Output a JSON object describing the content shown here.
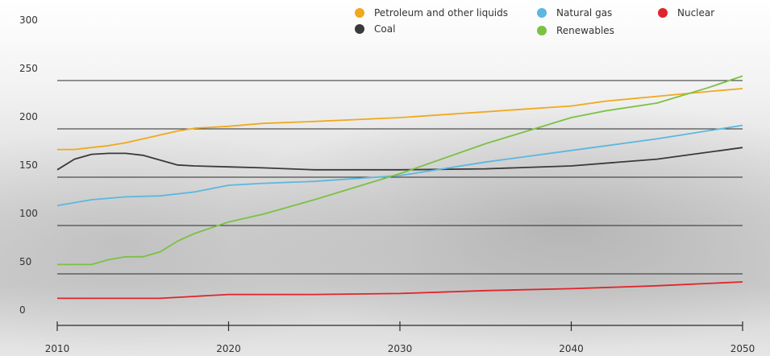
{
  "chart_data": {
    "type": "line",
    "title": "",
    "xlabel": "",
    "ylabel": "",
    "ylim": [
      0,
      300
    ],
    "xlim": [
      2010,
      2050
    ],
    "yticks": [
      0,
      50,
      100,
      150,
      200,
      250,
      300
    ],
    "xticks": [
      2010,
      2020,
      2030,
      2040,
      2050
    ],
    "legend_position": "top-right",
    "series": [
      {
        "name": "Petroleum and other liquids",
        "color": "#F0A91E",
        "x": [
          2010,
          2011,
          2012,
          2013,
          2014,
          2015,
          2016,
          2017,
          2018,
          2020,
          2022,
          2025,
          2030,
          2035,
          2040,
          2042,
          2045,
          2048,
          2050
        ],
        "y": [
          182,
          182,
          184,
          186,
          189,
          193,
          197,
          201,
          204,
          206,
          209,
          211,
          215,
          221,
          227,
          232,
          237,
          242,
          245
        ]
      },
      {
        "name": "Coal",
        "color": "#3A3A3A",
        "x": [
          2010,
          2011,
          2012,
          2013,
          2014,
          2015,
          2016,
          2017,
          2018,
          2020,
          2022,
          2025,
          2030,
          2035,
          2040,
          2045,
          2050
        ],
        "y": [
          161,
          172,
          177,
          178,
          178,
          176,
          171,
          166,
          165,
          164,
          163,
          161,
          161,
          162,
          165,
          172,
          184
        ]
      },
      {
        "name": "Natural gas",
        "color": "#5BB8DE",
        "x": [
          2010,
          2012,
          2014,
          2016,
          2018,
          2020,
          2022,
          2025,
          2030,
          2035,
          2040,
          2045,
          2050
        ],
        "y": [
          124,
          130,
          133,
          134,
          138,
          145,
          147,
          149,
          155,
          169,
          181,
          193,
          207
        ]
      },
      {
        "name": "Renewables",
        "color": "#7BC143",
        "x": [
          2010,
          2012,
          2013,
          2014,
          2015,
          2016,
          2017,
          2018,
          2019,
          2020,
          2022,
          2025,
          2030,
          2035,
          2040,
          2042,
          2045,
          2048,
          2050
        ],
        "y": [
          63,
          63,
          68,
          71,
          71,
          76,
          87,
          95,
          101,
          107,
          115,
          130,
          157,
          188,
          215,
          222,
          230,
          246,
          258
        ]
      },
      {
        "name": "Nuclear",
        "color": "#E0242B",
        "x": [
          2010,
          2012,
          2014,
          2016,
          2018,
          2020,
          2022,
          2025,
          2030,
          2035,
          2040,
          2045,
          2050
        ],
        "y": [
          28,
          28,
          28,
          28,
          30,
          32,
          32,
          32,
          33,
          36,
          38,
          41,
          45
        ]
      }
    ]
  }
}
